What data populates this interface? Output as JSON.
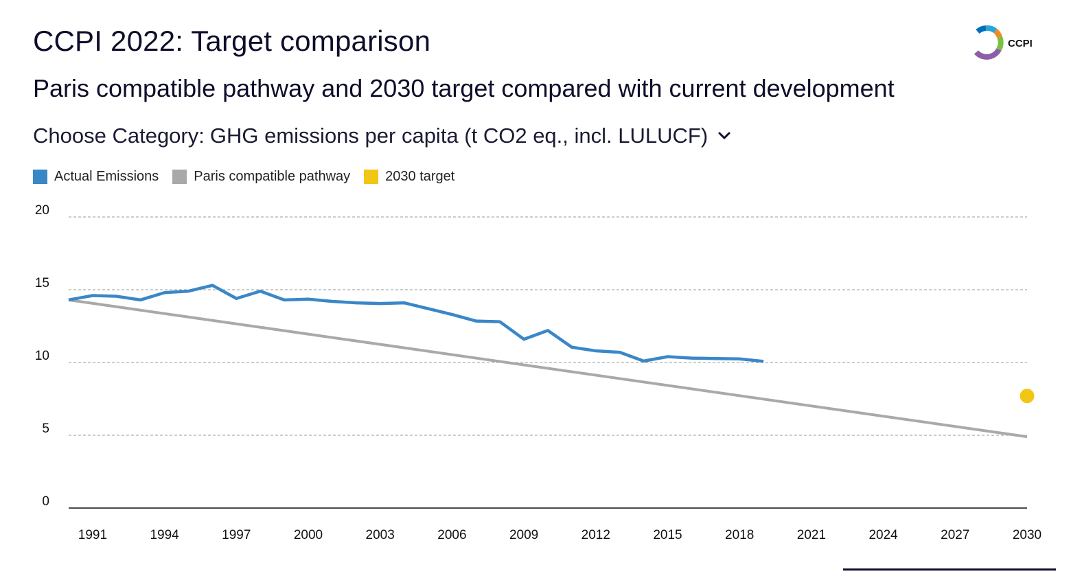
{
  "header": {
    "title": "CCPI 2022: Target comparison",
    "subtitle": "Paris compatible pathway and 2030 target compared with current development",
    "category_prefix": "Choose Category:",
    "category_value": "GHG emissions per capita (t CO2 eq., incl. LULUCF)",
    "category_icon": "chevron-down-icon"
  },
  "logo": {
    "text": "CCPI",
    "colors": [
      "#8e5fa8",
      "#2aa5dc",
      "#f08a24",
      "#7bbf43",
      "#0070b8"
    ]
  },
  "legend": [
    {
      "label": "Actual Emissions",
      "color": "#3a87c8"
    },
    {
      "label": "Paris compatible pathway",
      "color": "#a9a9a9"
    },
    {
      "label": "2030 target",
      "color": "#f2c614"
    }
  ],
  "chart_data": {
    "type": "line",
    "title": "CCPI 2022: Target comparison",
    "subtitle": "Paris compatible pathway and 2030 target compared with current development",
    "xlabel": "",
    "ylabel": "",
    "xlim": [
      1990,
      2030
    ],
    "ylim": [
      0,
      20
    ],
    "x_ticks": [
      1991,
      1994,
      1997,
      2000,
      2003,
      2006,
      2009,
      2012,
      2015,
      2018,
      2021,
      2024,
      2027,
      2030
    ],
    "y_ticks": [
      0,
      5,
      10,
      15,
      20
    ],
    "grid": true,
    "legend_position": "top-left",
    "series": [
      {
        "name": "Actual Emissions",
        "color": "#3a87c8",
        "x": [
          1990,
          1991,
          1992,
          1993,
          1994,
          1995,
          1996,
          1997,
          1998,
          1999,
          2000,
          2001,
          2002,
          2003,
          2004,
          2005,
          2006,
          2007,
          2008,
          2009,
          2010,
          2011,
          2012,
          2013,
          2014,
          2015,
          2016,
          2017,
          2018,
          2019
        ],
        "values": [
          14.3,
          14.6,
          14.55,
          14.3,
          14.8,
          14.9,
          15.3,
          14.4,
          14.9,
          14.3,
          14.35,
          14.2,
          14.1,
          14.05,
          14.1,
          13.7,
          13.3,
          12.85,
          12.8,
          11.6,
          12.2,
          11.05,
          10.8,
          10.7,
          10.1,
          10.4,
          10.3,
          10.27,
          10.25,
          10.08
        ]
      },
      {
        "name": "Paris compatible pathway",
        "color": "#a9a9a9",
        "x": [
          1990,
          2030
        ],
        "values": [
          14.3,
          4.9
        ]
      },
      {
        "name": "2030 target",
        "color": "#f2c614",
        "type": "scatter",
        "x": [
          2030
        ],
        "values": [
          7.7
        ]
      }
    ]
  }
}
